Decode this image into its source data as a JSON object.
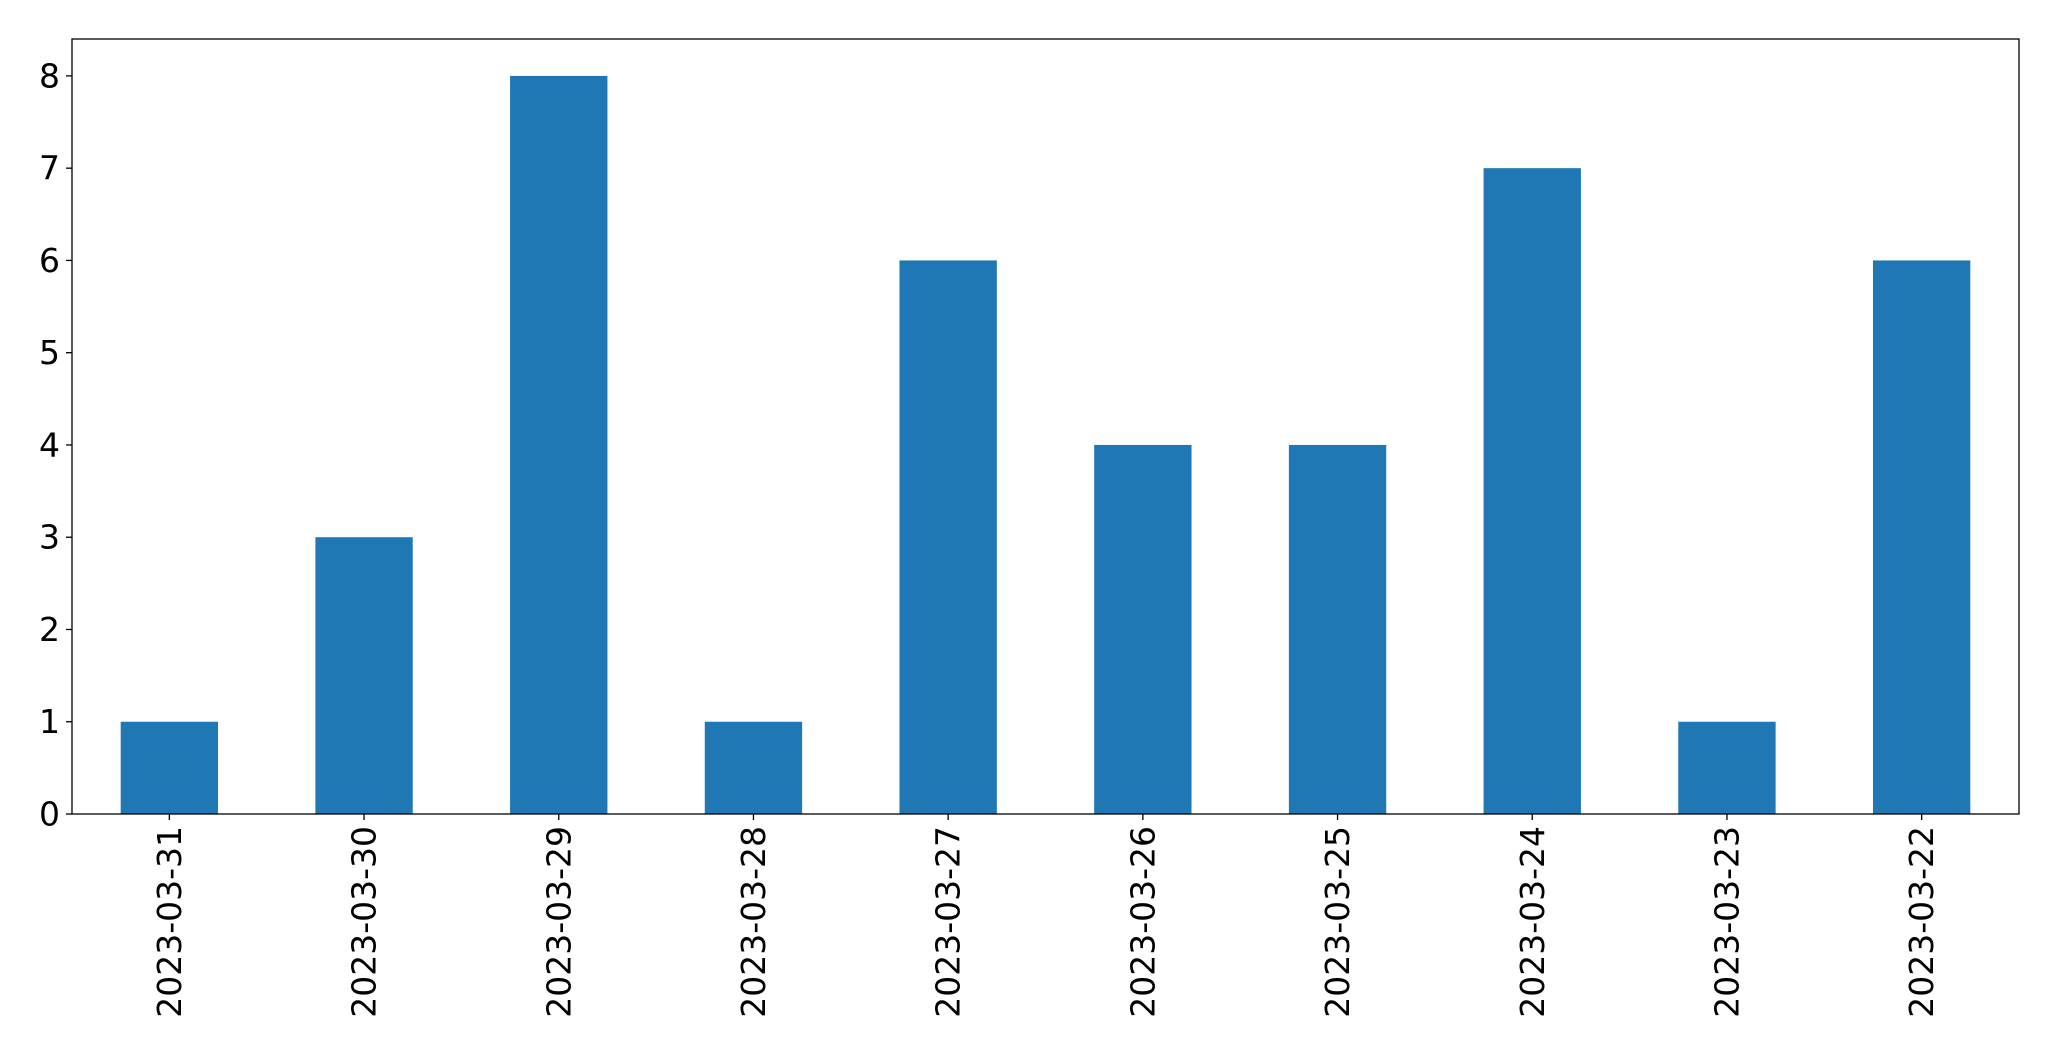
{
  "chart_data": {
    "type": "bar",
    "categories": [
      "2023-03-31",
      "2023-03-30",
      "2023-03-29",
      "2023-03-28",
      "2023-03-27",
      "2023-03-26",
      "2023-03-25",
      "2023-03-24",
      "2023-03-23",
      "2023-03-22"
    ],
    "values": [
      1,
      3,
      8,
      1,
      6,
      4,
      4,
      7,
      1,
      6
    ],
    "color": "#1f77b4",
    "ylim": [
      0,
      8.4
    ],
    "yticks": [
      0,
      1,
      2,
      3,
      4,
      5,
      6,
      7,
      8
    ],
    "grid": false
  }
}
